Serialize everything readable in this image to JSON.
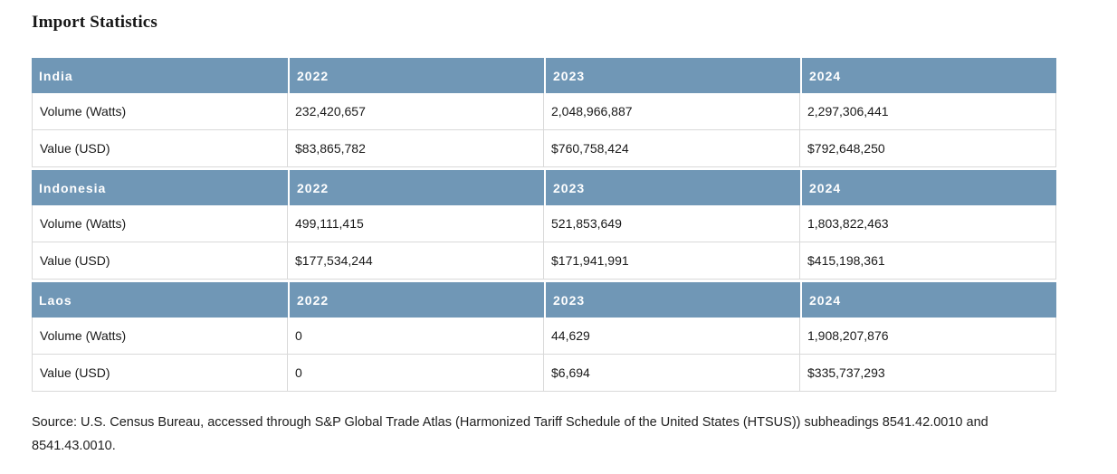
{
  "page": {
    "title": "Import Statistics"
  },
  "table": {
    "years": [
      "2022",
      "2023",
      "2024"
    ],
    "groups": [
      {
        "country": "India",
        "rows": [
          {
            "label": "Volume (Watts)",
            "values": [
              "232,420,657",
              "2,048,966,887",
              "2,297,306,441"
            ]
          },
          {
            "label": "Value (USD)",
            "values": [
              "$83,865,782",
              "$760,758,424",
              "$792,648,250"
            ]
          }
        ]
      },
      {
        "country": "Indonesia",
        "rows": [
          {
            "label": "Volume (Watts)",
            "values": [
              "499,111,415",
              "521,853,649",
              "1,803,822,463"
            ]
          },
          {
            "label": "Value (USD)",
            "values": [
              "$177,534,244",
              "$171,941,991",
              "$415,198,361"
            ]
          }
        ]
      },
      {
        "country": "Laos",
        "rows": [
          {
            "label": "Volume (Watts)",
            "values": [
              "0",
              "44,629",
              "1,908,207,876"
            ]
          },
          {
            "label": "Value (USD)",
            "values": [
              "0",
              "$6,694",
              "$335,737,293"
            ]
          }
        ]
      }
    ]
  },
  "source_note": "Source: U.S. Census Bureau, accessed through S&P Global Trade Atlas (Harmonized Tariff Schedule of the United States (HTSUS)) subheadings 8541.42.0010 and 8541.43.0010.",
  "colors": {
    "header_bg": "#7097b6",
    "header_text": "#ffffff",
    "body_border": "#d9d9d9",
    "text": "#1a1a1a"
  }
}
